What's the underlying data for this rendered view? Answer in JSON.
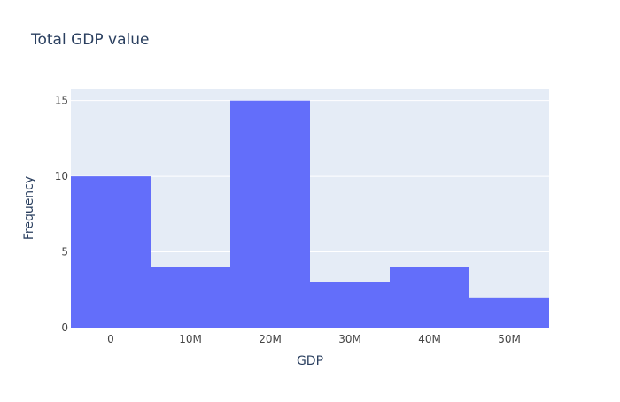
{
  "chart_data": {
    "type": "bar",
    "title": "Total GDP value",
    "xlabel": "GDP",
    "ylabel": "Frequency",
    "bins": [
      {
        "start": -5000000,
        "end": 5000000,
        "value": 10
      },
      {
        "start": 5000000,
        "end": 15000000,
        "value": 4
      },
      {
        "start": 15000000,
        "end": 25000000,
        "value": 15
      },
      {
        "start": 25000000,
        "end": 35000000,
        "value": 3
      },
      {
        "start": 35000000,
        "end": 45000000,
        "value": 4
      },
      {
        "start": 45000000,
        "end": 55000000,
        "value": 2
      }
    ],
    "xlim": [
      -5000000,
      55000000
    ],
    "ylim": [
      0,
      15.8
    ],
    "x_ticks": [
      {
        "value": 0,
        "label": "0"
      },
      {
        "value": 10000000,
        "label": "10M"
      },
      {
        "value": 20000000,
        "label": "20M"
      },
      {
        "value": 30000000,
        "label": "30M"
      },
      {
        "value": 40000000,
        "label": "40M"
      },
      {
        "value": 50000000,
        "label": "50M"
      }
    ],
    "y_ticks": [
      {
        "value": 0,
        "label": "0"
      },
      {
        "value": 5,
        "label": "5"
      },
      {
        "value": 10,
        "label": "10"
      },
      {
        "value": 15,
        "label": "15"
      }
    ],
    "grid": true,
    "colors": {
      "bar": "#636efa",
      "plot_bg": "#e5ecf6",
      "grid": "#ffffff",
      "text": "#2a3f5f",
      "tick_text": "#444444"
    }
  }
}
